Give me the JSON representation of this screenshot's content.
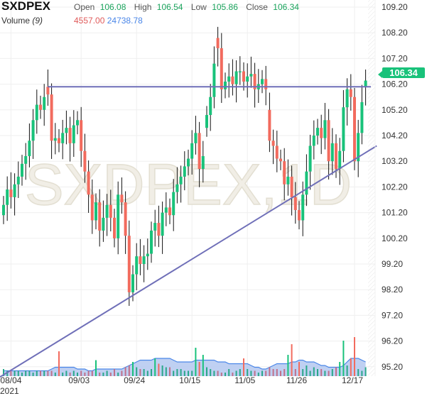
{
  "header": {
    "symbol": "SXDPEX",
    "open_label": "Open",
    "open": "106.08",
    "high_label": "High",
    "high": "106.54",
    "low_label": "Low",
    "low": "105.86",
    "close_label": "Close",
    "close": "106.34",
    "volume_label": "Volume",
    "volume_period": "(9)",
    "volume_value": "4557.00",
    "volume_ma": "24738.78"
  },
  "watermark": "SXDPEX,1D",
  "last_price_tag": "106.34",
  "colors": {
    "up": "#19c27a",
    "down": "#f26b5e",
    "line": "#6f6fb8",
    "volume_ma": "#4a86e8"
  },
  "chart_data": {
    "type": "candlestick",
    "title": "SXDPEX",
    "y_ticks": [
      "109.20",
      "108.20",
      "107.20",
      "106.20",
      "105.20",
      "104.20",
      "103.20",
      "102.20",
      "101.20",
      "100.20",
      "99.20",
      "98.20",
      "97.20",
      "96.20",
      "95.20"
    ],
    "ylim": [
      95.0,
      109.4
    ],
    "x_ticks": [
      {
        "label": "08/04",
        "index": 2,
        "sub": "2021"
      },
      {
        "label": "09/03",
        "index": 21
      },
      {
        "label": "09/24",
        "index": 36
      },
      {
        "label": "10/15",
        "index": 51
      },
      {
        "label": "11/05",
        "index": 66
      },
      {
        "label": "11/26",
        "index": 80
      },
      {
        "label": "12/17",
        "index": 95
      }
    ],
    "close": [
      101.5,
      102.1,
      101.8,
      102.3,
      102.6,
      103.1,
      103.4,
      104.0,
      104.8,
      105.4,
      105.2,
      105.7,
      105.8,
      104.0,
      104.1,
      103.9,
      104.3,
      104.5,
      103.9,
      104.6,
      104.8,
      103.6,
      102.8,
      101.9,
      100.9,
      101.6,
      100.5,
      101.0,
      101.5,
      101.0,
      100.2,
      101.9,
      101.6,
      100.3,
      98.1,
      98.8,
      99.5,
      99.2,
      99.5,
      99.6,
      100.5,
      100.8,
      100.3,
      101.2,
      101.4,
      101.1,
      102.0,
      102.3,
      102.6,
      103.0,
      103.3,
      103.9,
      104.3,
      102.9,
      103.4,
      105.0,
      105.7,
      107.0,
      107.6,
      106.0,
      106.3,
      106.5,
      106.2,
      106.7,
      106.7,
      106.3,
      106.5,
      106.6,
      106.0,
      106.2,
      106.4,
      106.0,
      104.0,
      103.8,
      103.3,
      103.2,
      102.3,
      102.6,
      101.8,
      101.3,
      100.9,
      101.9,
      102.8,
      103.8,
      104.2,
      104.5,
      104.1,
      104.8,
      103.2,
      103.9,
      102.9,
      103.6,
      105.3,
      106.0,
      105.7,
      103.2,
      104.3,
      105.5,
      106.34
    ],
    "open": [
      101.1,
      101.5,
      102.1,
      101.8,
      102.3,
      102.6,
      103.1,
      103.4,
      104.0,
      104.8,
      105.4,
      105.2,
      106.1,
      105.8,
      104.0,
      104.1,
      103.9,
      104.3,
      104.5,
      103.9,
      104.6,
      104.8,
      103.6,
      102.8,
      101.9,
      100.9,
      101.6,
      100.5,
      101.0,
      101.5,
      101.0,
      100.2,
      101.9,
      101.6,
      100.3,
      98.1,
      98.8,
      99.5,
      99.2,
      99.5,
      99.6,
      100.5,
      100.8,
      100.3,
      101.2,
      101.4,
      101.1,
      102.0,
      102.3,
      102.6,
      103.0,
      103.3,
      103.9,
      104.3,
      102.9,
      104.5,
      105.0,
      105.7,
      108.0,
      107.6,
      106.0,
      106.3,
      106.5,
      106.2,
      106.7,
      106.7,
      106.3,
      106.5,
      106.6,
      106.0,
      106.2,
      106.4,
      105.2,
      104.0,
      103.8,
      103.3,
      103.2,
      102.3,
      102.6,
      101.8,
      101.3,
      100.9,
      101.9,
      102.8,
      103.8,
      104.2,
      104.5,
      104.1,
      104.8,
      103.2,
      103.9,
      102.9,
      103.6,
      105.3,
      106.0,
      105.7,
      103.2,
      104.3,
      106.08
    ],
    "volume": [
      4,
      3,
      3,
      3,
      3,
      2,
      3,
      3,
      2,
      3,
      3,
      3,
      3,
      3,
      2,
      14,
      2,
      3,
      2,
      3,
      2,
      3,
      2,
      3,
      3,
      9,
      2,
      2,
      3,
      2,
      4,
      2,
      3,
      5,
      6,
      8,
      5,
      4,
      4,
      3,
      4,
      10,
      7,
      6,
      5,
      5,
      3,
      4,
      4,
      3,
      3,
      3,
      16,
      8,
      12,
      5,
      4,
      3,
      3,
      2,
      2,
      4,
      2,
      3,
      4,
      10,
      4,
      3,
      3,
      2,
      3,
      3,
      5,
      4,
      4,
      3,
      4,
      12,
      18,
      4,
      8,
      4,
      6,
      3,
      5,
      4,
      4,
      3,
      3,
      4,
      5,
      8,
      20,
      6,
      10,
      22,
      4,
      3,
      5
    ],
    "volume_ma": [
      3,
      3,
      3,
      3,
      3,
      3,
      3,
      3,
      3,
      3,
      3,
      3,
      3,
      4,
      5,
      5,
      5,
      5,
      5,
      5,
      4,
      4,
      4,
      3,
      3,
      4,
      4,
      4,
      4,
      4,
      4,
      4,
      4,
      5,
      6,
      7,
      8,
      9,
      9,
      9,
      9,
      10,
      10,
      10,
      10,
      10,
      9,
      8,
      8,
      8,
      8,
      8,
      9,
      9,
      9,
      9,
      9,
      9,
      8,
      8,
      8,
      7,
      7,
      7,
      7,
      7,
      7,
      6,
      5,
      5,
      4,
      4,
      5,
      6,
      7,
      7,
      7,
      7,
      8,
      8,
      9,
      9,
      8,
      8,
      8,
      7,
      6,
      6,
      5,
      5,
      5,
      5,
      6,
      8,
      10,
      10,
      10,
      9,
      8
    ],
    "horizontal_line": {
      "price": 106.1,
      "from_index": 12
    },
    "trend_line": {
      "from": {
        "index": -1,
        "price": 94.8
      },
      "to": {
        "index": 101,
        "price": 103.8
      }
    }
  }
}
